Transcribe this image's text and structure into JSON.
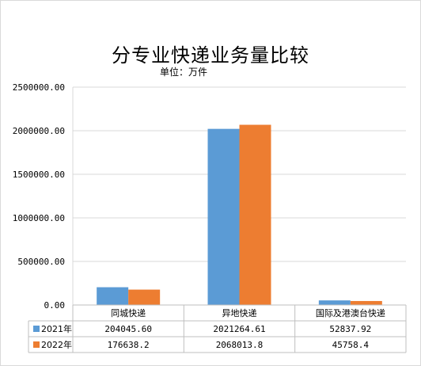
{
  "chart_data": {
    "type": "bar",
    "title": "分专业快递业务量比较",
    "subtitle": "单位：万件",
    "categories": [
      "同城快递",
      "异地快递",
      "国际及港澳台快递"
    ],
    "series": [
      {
        "name": "2021年",
        "color": "#5b9bd5",
        "values": [
          204045.6,
          2021264.61,
          52837.92
        ],
        "labels": [
          "204045.60",
          "2021264.61",
          "52837.92"
        ]
      },
      {
        "name": "2022年",
        "color": "#ed7d31",
        "values": [
          176638.2,
          2068013.8,
          45758.4
        ],
        "labels": [
          "176638.2",
          "2068013.8",
          "45758.4"
        ]
      }
    ],
    "ylim": [
      0,
      2500000
    ],
    "yticks": [
      0,
      500000,
      1000000,
      1500000,
      2000000,
      2500000
    ],
    "ytick_labels": [
      "0.00",
      "500000.00",
      "1000000.00",
      "1500000.00",
      "2000000.00",
      "2500000.00"
    ],
    "grid": true,
    "legend": "data-table"
  }
}
